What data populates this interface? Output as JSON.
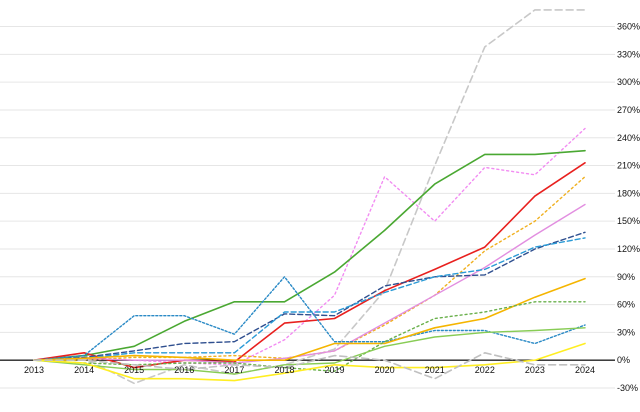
{
  "chart_data": {
    "type": "line",
    "title": "",
    "xlabel": "",
    "ylabel": "",
    "x": [
      "2013",
      "2014",
      "2015",
      "2016",
      "2017",
      "2018",
      "2019",
      "2020",
      "2021",
      "2022",
      "2023",
      "2024"
    ],
    "ylim": [
      -30,
      380
    ],
    "yticks": [
      -30,
      0,
      30,
      60,
      90,
      120,
      150,
      180,
      210,
      240,
      270,
      300,
      330,
      360
    ],
    "ytick_labels": [
      "-30%",
      "0%",
      "30%",
      "60%",
      "90%",
      "120%",
      "150%",
      "180%",
      "210%",
      "240%",
      "270%",
      "300%",
      "330%",
      "360%"
    ],
    "grid": true,
    "legend": "none",
    "series": [
      {
        "color": "#c8c8c8",
        "dash": "7,4",
        "width": 1.6,
        "values": [
          0,
          2,
          -25,
          -5,
          -15,
          -5,
          12,
          75,
          210,
          338,
          378,
          378
        ]
      },
      {
        "color": "#f28cf2",
        "dash": "2,3",
        "width": 1.4,
        "values": [
          0,
          3,
          0,
          -3,
          -5,
          22,
          70,
          198,
          150,
          208,
          200,
          250
        ]
      },
      {
        "color": "#4aa832",
        "dash": "",
        "width": 1.6,
        "values": [
          0,
          5,
          15,
          42,
          63,
          63,
          95,
          140,
          190,
          222,
          222,
          226
        ]
      },
      {
        "color": "#e8201e",
        "dash": "",
        "width": 1.6,
        "values": [
          0,
          8,
          -8,
          0,
          -2,
          40,
          45,
          75,
          98,
          122,
          177,
          213
        ]
      },
      {
        "color": "#f0b020",
        "dash": "2,3",
        "width": 1.4,
        "values": [
          0,
          0,
          3,
          3,
          5,
          2,
          10,
          38,
          70,
          118,
          150,
          198
        ]
      },
      {
        "color": "#e28ee0",
        "dash": "",
        "width": 1.4,
        "values": [
          0,
          2,
          0,
          0,
          -3,
          2,
          10,
          40,
          70,
          100,
          135,
          168
        ]
      },
      {
        "color": "#2f4f8f",
        "dash": "5,3",
        "width": 1.4,
        "values": [
          0,
          3,
          10,
          18,
          20,
          50,
          48,
          80,
          90,
          92,
          120,
          138
        ]
      },
      {
        "color": "#2a9ad6",
        "dash": "5,3",
        "width": 1.4,
        "values": [
          0,
          2,
          8,
          8,
          8,
          52,
          52,
          73,
          90,
          98,
          122,
          132
        ]
      },
      {
        "color": "#2a8ac6",
        "dash": "2,2",
        "width": 1.4,
        "values": [
          0,
          5,
          48,
          48,
          28,
          90,
          20,
          20,
          32,
          32,
          18,
          38
        ]
      },
      {
        "color": "#f5b500",
        "dash": "",
        "width": 1.6,
        "values": [
          0,
          2,
          5,
          3,
          0,
          0,
          18,
          18,
          35,
          45,
          68,
          88
        ]
      },
      {
        "color": "#6ab04c",
        "dash": "2,3",
        "width": 1.4,
        "values": [
          0,
          -3,
          -5,
          -3,
          -3,
          -8,
          -12,
          20,
          45,
          52,
          63,
          63
        ]
      },
      {
        "color": "#88cc55",
        "dash": "",
        "width": 1.4,
        "values": [
          0,
          -5,
          -10,
          -10,
          -15,
          -5,
          -3,
          15,
          25,
          30,
          32,
          35
        ]
      },
      {
        "color": "#ffee22",
        "dash": "",
        "width": 1.6,
        "values": [
          0,
          -3,
          -20,
          -20,
          -22,
          -14,
          -5,
          -8,
          -8,
          -5,
          0,
          18
        ]
      },
      {
        "color": "#c0c0c0",
        "dash": "7,4",
        "width": 1.6,
        "values": [
          0,
          0,
          -5,
          -10,
          -5,
          -8,
          5,
          0,
          -20,
          8,
          -5,
          -5
        ]
      }
    ]
  }
}
